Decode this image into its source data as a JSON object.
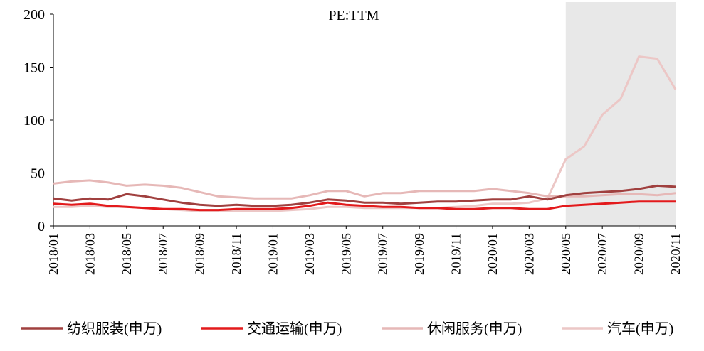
{
  "chart_data": {
    "type": "line",
    "title": "PE:TTM",
    "x_ticks": [
      "2018/01",
      "2018/03",
      "2018/05",
      "2018/07",
      "2018/09",
      "2018/11",
      "2019/01",
      "2019/03",
      "2019/05",
      "2019/07",
      "2019/09",
      "2019/11",
      "2020/01",
      "2020/03",
      "2020/05",
      "2020/07",
      "2020/09",
      "2020/11"
    ],
    "ylim": [
      0,
      200
    ],
    "yticks": [
      0,
      50,
      100,
      150,
      200
    ],
    "shaded_region": {
      "from": "2020/05",
      "to": "2020/11",
      "color": "#e8e8e8"
    },
    "legend_position": "bottom",
    "series": [
      {
        "name": "纺织服装(申万)",
        "color": "#a0403f",
        "points": [
          [
            "2018/01",
            26
          ],
          [
            "2018/02",
            24
          ],
          [
            "2018/03",
            26
          ],
          [
            "2018/04",
            25
          ],
          [
            "2018/05",
            30
          ],
          [
            "2018/06",
            28
          ],
          [
            "2018/07",
            25
          ],
          [
            "2018/08",
            22
          ],
          [
            "2018/09",
            20
          ],
          [
            "2018/10",
            19
          ],
          [
            "2018/11",
            20
          ],
          [
            "2018/12",
            19
          ],
          [
            "2019/01",
            19
          ],
          [
            "2019/02",
            20
          ],
          [
            "2019/03",
            22
          ],
          [
            "2019/04",
            25
          ],
          [
            "2019/05",
            24
          ],
          [
            "2019/06",
            22
          ],
          [
            "2019/07",
            22
          ],
          [
            "2019/08",
            21
          ],
          [
            "2019/09",
            22
          ],
          [
            "2019/10",
            23
          ],
          [
            "2019/11",
            23
          ],
          [
            "2019/12",
            24
          ],
          [
            "2020/01",
            25
          ],
          [
            "2020/02",
            25
          ],
          [
            "2020/03",
            28
          ],
          [
            "2020/04",
            25
          ],
          [
            "2020/05",
            29
          ],
          [
            "2020/06",
            31
          ],
          [
            "2020/07",
            32
          ],
          [
            "2020/08",
            33
          ],
          [
            "2020/09",
            35
          ],
          [
            "2020/10",
            38
          ],
          [
            "2020/11",
            37
          ]
        ]
      },
      {
        "name": "交通运输(申万)",
        "color": "#e31a1c",
        "points": [
          [
            "2018/01",
            21
          ],
          [
            "2018/02",
            20
          ],
          [
            "2018/03",
            21
          ],
          [
            "2018/04",
            19
          ],
          [
            "2018/05",
            18
          ],
          [
            "2018/06",
            17
          ],
          [
            "2018/07",
            16
          ],
          [
            "2018/08",
            16
          ],
          [
            "2018/09",
            15
          ],
          [
            "2018/10",
            15
          ],
          [
            "2018/11",
            16
          ],
          [
            "2018/12",
            16
          ],
          [
            "2019/01",
            16
          ],
          [
            "2019/02",
            17
          ],
          [
            "2019/03",
            19
          ],
          [
            "2019/04",
            22
          ],
          [
            "2019/05",
            20
          ],
          [
            "2019/06",
            19
          ],
          [
            "2019/07",
            18
          ],
          [
            "2019/08",
            18
          ],
          [
            "2019/09",
            17
          ],
          [
            "2019/10",
            17
          ],
          [
            "2019/11",
            16
          ],
          [
            "2019/12",
            16
          ],
          [
            "2020/01",
            17
          ],
          [
            "2020/02",
            17
          ],
          [
            "2020/03",
            16
          ],
          [
            "2020/04",
            16
          ],
          [
            "2020/05",
            19
          ],
          [
            "2020/06",
            20
          ],
          [
            "2020/07",
            21
          ],
          [
            "2020/08",
            22
          ],
          [
            "2020/09",
            23
          ],
          [
            "2020/10",
            23
          ],
          [
            "2020/11",
            23
          ]
        ]
      },
      {
        "name": "休闲服务(申万)",
        "color": "#e6b8b7",
        "points": [
          [
            "2018/01",
            40
          ],
          [
            "2018/02",
            42
          ],
          [
            "2018/03",
            43
          ],
          [
            "2018/04",
            41
          ],
          [
            "2018/05",
            38
          ],
          [
            "2018/06",
            39
          ],
          [
            "2018/07",
            38
          ],
          [
            "2018/08",
            36
          ],
          [
            "2018/09",
            32
          ],
          [
            "2018/10",
            28
          ],
          [
            "2018/11",
            27
          ],
          [
            "2018/12",
            26
          ],
          [
            "2019/01",
            26
          ],
          [
            "2019/02",
            26
          ],
          [
            "2019/03",
            29
          ],
          [
            "2019/04",
            33
          ],
          [
            "2019/05",
            33
          ],
          [
            "2019/06",
            28
          ],
          [
            "2019/07",
            31
          ],
          [
            "2019/08",
            31
          ],
          [
            "2019/09",
            33
          ],
          [
            "2019/10",
            33
          ],
          [
            "2019/11",
            33
          ],
          [
            "2019/12",
            33
          ],
          [
            "2020/01",
            35
          ],
          [
            "2020/02",
            33
          ],
          [
            "2020/03",
            31
          ],
          [
            "2020/04",
            28
          ],
          [
            "2020/05",
            28
          ],
          [
            "2020/06",
            28
          ],
          [
            "2020/07",
            29
          ],
          [
            "2020/08",
            30
          ],
          [
            "2020/09",
            30
          ],
          [
            "2020/10",
            29
          ],
          [
            "2020/11",
            31
          ]
        ]
      },
      {
        "name": "汽车(申万)",
        "color": "#ecc7c6",
        "points": [
          [
            "2018/01",
            18
          ],
          [
            "2018/02",
            18
          ],
          [
            "2018/03",
            19
          ],
          [
            "2018/04",
            18
          ],
          [
            "2018/05",
            18
          ],
          [
            "2018/06",
            17
          ],
          [
            "2018/07",
            16
          ],
          [
            "2018/08",
            15
          ],
          [
            "2018/09",
            14
          ],
          [
            "2018/10",
            14
          ],
          [
            "2018/11",
            14
          ],
          [
            "2018/12",
            14
          ],
          [
            "2019/01",
            14
          ],
          [
            "2019/02",
            15
          ],
          [
            "2019/03",
            16
          ],
          [
            "2019/04",
            18
          ],
          [
            "2019/05",
            18
          ],
          [
            "2019/06",
            17
          ],
          [
            "2019/07",
            17
          ],
          [
            "2019/08",
            17
          ],
          [
            "2019/09",
            17
          ],
          [
            "2019/10",
            17
          ],
          [
            "2019/11",
            18
          ],
          [
            "2019/12",
            19
          ],
          [
            "2020/01",
            21
          ],
          [
            "2020/02",
            21
          ],
          [
            "2020/03",
            22
          ],
          [
            "2020/04",
            26
          ],
          [
            "2020/05",
            63
          ],
          [
            "2020/06",
            75
          ],
          [
            "2020/07",
            105
          ],
          [
            "2020/08",
            120
          ],
          [
            "2020/09",
            160
          ],
          [
            "2020/10",
            158
          ],
          [
            "2020/11",
            129
          ]
        ]
      }
    ]
  }
}
